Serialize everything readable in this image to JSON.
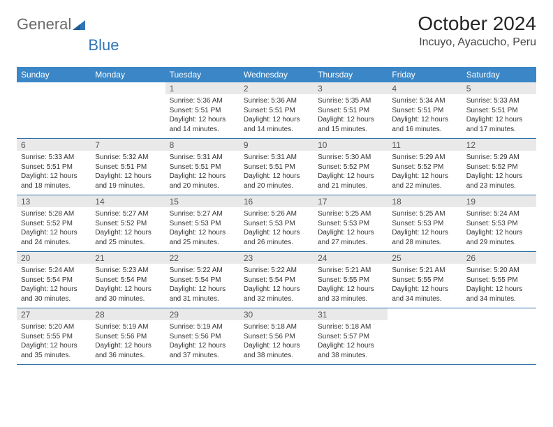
{
  "logo": {
    "word1": "General",
    "word2": "Blue"
  },
  "title": "October 2024",
  "location": "Incuyo, Ayacucho, Peru",
  "colors": {
    "header_bg": "#3b86c6",
    "header_text": "#ffffff",
    "daynum_bg": "#e9e9e9",
    "row_border": "#2f70a8",
    "logo_gray": "#6b6b6b",
    "logo_blue": "#2f76b7"
  },
  "weekdays": [
    "Sunday",
    "Monday",
    "Tuesday",
    "Wednesday",
    "Thursday",
    "Friday",
    "Saturday"
  ],
  "weeks": [
    [
      {
        "n": "",
        "lines": [
          "",
          "",
          "",
          ""
        ],
        "empty": true
      },
      {
        "n": "",
        "lines": [
          "",
          "",
          "",
          ""
        ],
        "empty": true
      },
      {
        "n": "1",
        "lines": [
          "Sunrise: 5:36 AM",
          "Sunset: 5:51 PM",
          "Daylight: 12 hours",
          "and 14 minutes."
        ]
      },
      {
        "n": "2",
        "lines": [
          "Sunrise: 5:36 AM",
          "Sunset: 5:51 PM",
          "Daylight: 12 hours",
          "and 14 minutes."
        ]
      },
      {
        "n": "3",
        "lines": [
          "Sunrise: 5:35 AM",
          "Sunset: 5:51 PM",
          "Daylight: 12 hours",
          "and 15 minutes."
        ]
      },
      {
        "n": "4",
        "lines": [
          "Sunrise: 5:34 AM",
          "Sunset: 5:51 PM",
          "Daylight: 12 hours",
          "and 16 minutes."
        ]
      },
      {
        "n": "5",
        "lines": [
          "Sunrise: 5:33 AM",
          "Sunset: 5:51 PM",
          "Daylight: 12 hours",
          "and 17 minutes."
        ]
      }
    ],
    [
      {
        "n": "6",
        "lines": [
          "Sunrise: 5:33 AM",
          "Sunset: 5:51 PM",
          "Daylight: 12 hours",
          "and 18 minutes."
        ]
      },
      {
        "n": "7",
        "lines": [
          "Sunrise: 5:32 AM",
          "Sunset: 5:51 PM",
          "Daylight: 12 hours",
          "and 19 minutes."
        ]
      },
      {
        "n": "8",
        "lines": [
          "Sunrise: 5:31 AM",
          "Sunset: 5:51 PM",
          "Daylight: 12 hours",
          "and 20 minutes."
        ]
      },
      {
        "n": "9",
        "lines": [
          "Sunrise: 5:31 AM",
          "Sunset: 5:51 PM",
          "Daylight: 12 hours",
          "and 20 minutes."
        ]
      },
      {
        "n": "10",
        "lines": [
          "Sunrise: 5:30 AM",
          "Sunset: 5:52 PM",
          "Daylight: 12 hours",
          "and 21 minutes."
        ]
      },
      {
        "n": "11",
        "lines": [
          "Sunrise: 5:29 AM",
          "Sunset: 5:52 PM",
          "Daylight: 12 hours",
          "and 22 minutes."
        ]
      },
      {
        "n": "12",
        "lines": [
          "Sunrise: 5:29 AM",
          "Sunset: 5:52 PM",
          "Daylight: 12 hours",
          "and 23 minutes."
        ]
      }
    ],
    [
      {
        "n": "13",
        "lines": [
          "Sunrise: 5:28 AM",
          "Sunset: 5:52 PM",
          "Daylight: 12 hours",
          "and 24 minutes."
        ]
      },
      {
        "n": "14",
        "lines": [
          "Sunrise: 5:27 AM",
          "Sunset: 5:52 PM",
          "Daylight: 12 hours",
          "and 25 minutes."
        ]
      },
      {
        "n": "15",
        "lines": [
          "Sunrise: 5:27 AM",
          "Sunset: 5:53 PM",
          "Daylight: 12 hours",
          "and 25 minutes."
        ]
      },
      {
        "n": "16",
        "lines": [
          "Sunrise: 5:26 AM",
          "Sunset: 5:53 PM",
          "Daylight: 12 hours",
          "and 26 minutes."
        ]
      },
      {
        "n": "17",
        "lines": [
          "Sunrise: 5:25 AM",
          "Sunset: 5:53 PM",
          "Daylight: 12 hours",
          "and 27 minutes."
        ]
      },
      {
        "n": "18",
        "lines": [
          "Sunrise: 5:25 AM",
          "Sunset: 5:53 PM",
          "Daylight: 12 hours",
          "and 28 minutes."
        ]
      },
      {
        "n": "19",
        "lines": [
          "Sunrise: 5:24 AM",
          "Sunset: 5:53 PM",
          "Daylight: 12 hours",
          "and 29 minutes."
        ]
      }
    ],
    [
      {
        "n": "20",
        "lines": [
          "Sunrise: 5:24 AM",
          "Sunset: 5:54 PM",
          "Daylight: 12 hours",
          "and 30 minutes."
        ]
      },
      {
        "n": "21",
        "lines": [
          "Sunrise: 5:23 AM",
          "Sunset: 5:54 PM",
          "Daylight: 12 hours",
          "and 30 minutes."
        ]
      },
      {
        "n": "22",
        "lines": [
          "Sunrise: 5:22 AM",
          "Sunset: 5:54 PM",
          "Daylight: 12 hours",
          "and 31 minutes."
        ]
      },
      {
        "n": "23",
        "lines": [
          "Sunrise: 5:22 AM",
          "Sunset: 5:54 PM",
          "Daylight: 12 hours",
          "and 32 minutes."
        ]
      },
      {
        "n": "24",
        "lines": [
          "Sunrise: 5:21 AM",
          "Sunset: 5:55 PM",
          "Daylight: 12 hours",
          "and 33 minutes."
        ]
      },
      {
        "n": "25",
        "lines": [
          "Sunrise: 5:21 AM",
          "Sunset: 5:55 PM",
          "Daylight: 12 hours",
          "and 34 minutes."
        ]
      },
      {
        "n": "26",
        "lines": [
          "Sunrise: 5:20 AM",
          "Sunset: 5:55 PM",
          "Daylight: 12 hours",
          "and 34 minutes."
        ]
      }
    ],
    [
      {
        "n": "27",
        "lines": [
          "Sunrise: 5:20 AM",
          "Sunset: 5:55 PM",
          "Daylight: 12 hours",
          "and 35 minutes."
        ]
      },
      {
        "n": "28",
        "lines": [
          "Sunrise: 5:19 AM",
          "Sunset: 5:56 PM",
          "Daylight: 12 hours",
          "and 36 minutes."
        ]
      },
      {
        "n": "29",
        "lines": [
          "Sunrise: 5:19 AM",
          "Sunset: 5:56 PM",
          "Daylight: 12 hours",
          "and 37 minutes."
        ]
      },
      {
        "n": "30",
        "lines": [
          "Sunrise: 5:18 AM",
          "Sunset: 5:56 PM",
          "Daylight: 12 hours",
          "and 38 minutes."
        ]
      },
      {
        "n": "31",
        "lines": [
          "Sunrise: 5:18 AM",
          "Sunset: 5:57 PM",
          "Daylight: 12 hours",
          "and 38 minutes."
        ]
      },
      {
        "n": "",
        "lines": [
          "",
          "",
          "",
          ""
        ],
        "empty": true
      },
      {
        "n": "",
        "lines": [
          "",
          "",
          "",
          ""
        ],
        "empty": true
      }
    ]
  ]
}
